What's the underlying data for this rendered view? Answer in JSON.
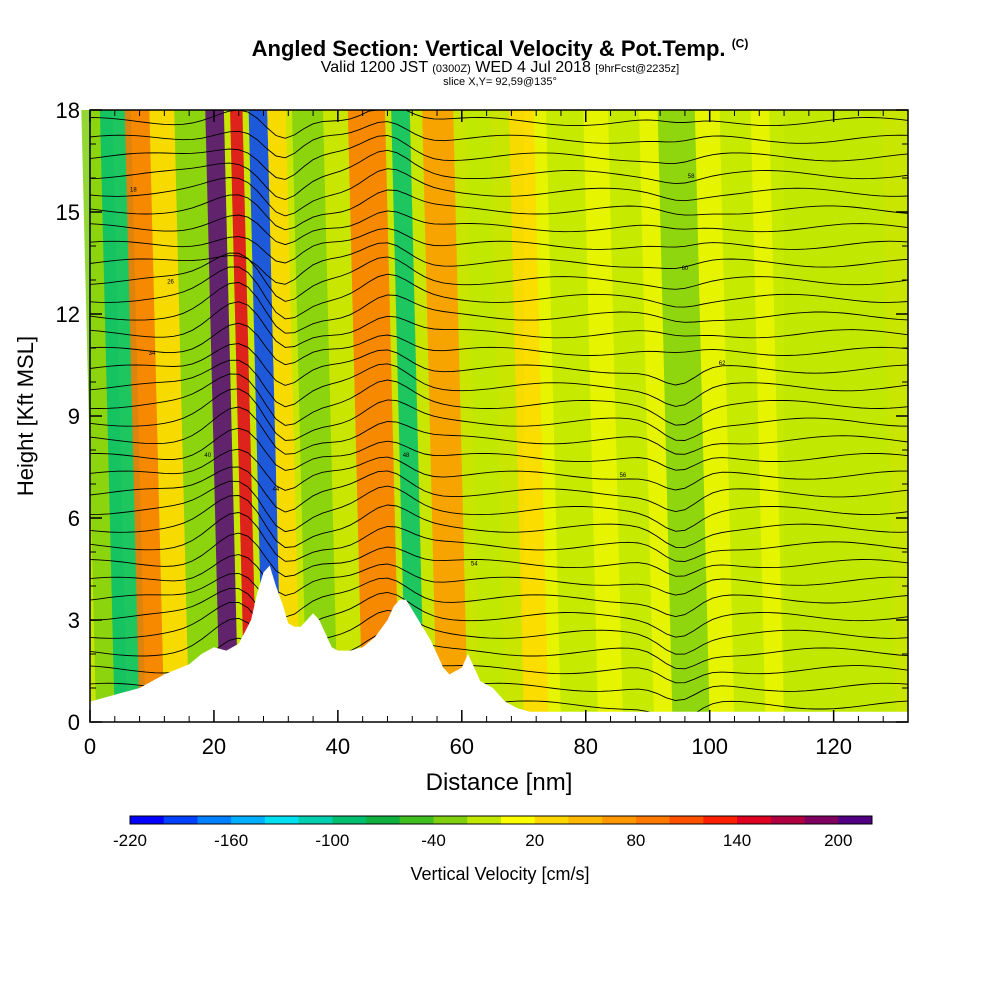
{
  "title": {
    "main": "Angled Section: Vertical Velocity & Pot.Temp.",
    "main_suffix": "(C)",
    "line2_a": "Valid 1200 JST",
    "line2_b": "(0300Z)",
    "line2_c": "WED 4 Jul 2018",
    "line2_d": "[9hrFcst@2235z]",
    "line3": "slice X,Y= 92,59@135°"
  },
  "chart_data": {
    "type": "heatmap",
    "xlabel": "Distance [nm]",
    "ylabel": "Height [Kft MSL]",
    "xlim": [
      0,
      132
    ],
    "ylim": [
      0,
      18
    ],
    "x_ticks": [
      0,
      20,
      40,
      60,
      80,
      100,
      120
    ],
    "y_ticks": [
      0,
      3,
      6,
      9,
      12,
      15,
      18
    ],
    "colorbar": {
      "label": "Vertical Velocity [cm/s]",
      "tick_labels": [
        "-220",
        "-160",
        "-100",
        "-40",
        "20",
        "80",
        "140",
        "200"
      ],
      "colors": [
        "#0000ff",
        "#0040ff",
        "#0080ff",
        "#00b0ff",
        "#00e0f0",
        "#00d0b0",
        "#00c070",
        "#10b040",
        "#40c020",
        "#80d010",
        "#c0e800",
        "#ffff00",
        "#ffd800",
        "#ffb800",
        "#ff9800",
        "#ff7800",
        "#ff5000",
        "#ff2000",
        "#e00020",
        "#b00040",
        "#800060",
        "#500080"
      ]
    },
    "velocity_bands": [
      {
        "x": 1,
        "w": 5,
        "v": -40
      },
      {
        "x": 4,
        "w": 5,
        "v": -100
      },
      {
        "x": 8,
        "w": 4,
        "v": 80
      },
      {
        "x": 12,
        "w": 4,
        "v": 20
      },
      {
        "x": 16,
        "w": 5,
        "v": -40
      },
      {
        "x": 21,
        "w": 3,
        "v": 200
      },
      {
        "x": 25,
        "w": 2,
        "v": 140
      },
      {
        "x": 28,
        "w": 3,
        "v": -200
      },
      {
        "x": 31,
        "w": 3,
        "v": 20
      },
      {
        "x": 35,
        "w": 5,
        "v": -40
      },
      {
        "x": 44,
        "w": 6,
        "v": 80
      },
      {
        "x": 51,
        "w": 3,
        "v": -100
      },
      {
        "x": 56,
        "w": 5,
        "v": 50
      },
      {
        "x": 63,
        "w": 4,
        "v": -20
      },
      {
        "x": 70,
        "w": 4,
        "v": 10
      },
      {
        "x": 76,
        "w": 6,
        "v": -30
      },
      {
        "x": 86,
        "w": 5,
        "v": -20
      },
      {
        "x": 94,
        "w": 6,
        "v": -40
      },
      {
        "x": 104,
        "w": 5,
        "v": -20
      },
      {
        "x": 112,
        "w": 18,
        "v": -20
      }
    ],
    "terrain": [
      [
        0,
        0.6
      ],
      [
        4,
        0.8
      ],
      [
        8,
        1
      ],
      [
        12,
        1.4
      ],
      [
        16,
        1.7
      ],
      [
        18,
        2
      ],
      [
        20,
        2.2
      ],
      [
        22,
        2.1
      ],
      [
        24,
        2.3
      ],
      [
        26,
        3
      ],
      [
        27,
        3.8
      ],
      [
        28,
        4.4
      ],
      [
        29,
        4.6
      ],
      [
        30,
        4
      ],
      [
        31,
        3.5
      ],
      [
        32,
        2.9
      ],
      [
        33,
        2.8
      ],
      [
        34,
        2.8
      ],
      [
        35,
        3
      ],
      [
        36,
        3.2
      ],
      [
        37,
        3
      ],
      [
        38,
        2.6
      ],
      [
        39,
        2.2
      ],
      [
        40,
        2.1
      ],
      [
        42,
        2.1
      ],
      [
        44,
        2.2
      ],
      [
        46,
        2.5
      ],
      [
        48,
        3
      ],
      [
        49,
        3.4
      ],
      [
        50,
        3.6
      ],
      [
        51,
        3.6
      ],
      [
        52,
        3.3
      ],
      [
        53,
        3
      ],
      [
        54,
        2.7
      ],
      [
        55,
        2.4
      ],
      [
        56,
        2
      ],
      [
        57,
        1.6
      ],
      [
        58,
        1.4
      ],
      [
        60,
        1.6
      ],
      [
        61,
        2
      ],
      [
        62,
        1.6
      ],
      [
        63,
        1.2
      ],
      [
        65,
        1
      ],
      [
        67,
        0.6
      ],
      [
        69,
        0.4
      ],
      [
        71,
        0.3
      ],
      [
        132,
        0.3
      ]
    ],
    "isentrope_labels": [
      "18",
      "26",
      "34",
      "40",
      "44",
      "48",
      "54",
      "56",
      "58",
      "60",
      "62"
    ]
  }
}
